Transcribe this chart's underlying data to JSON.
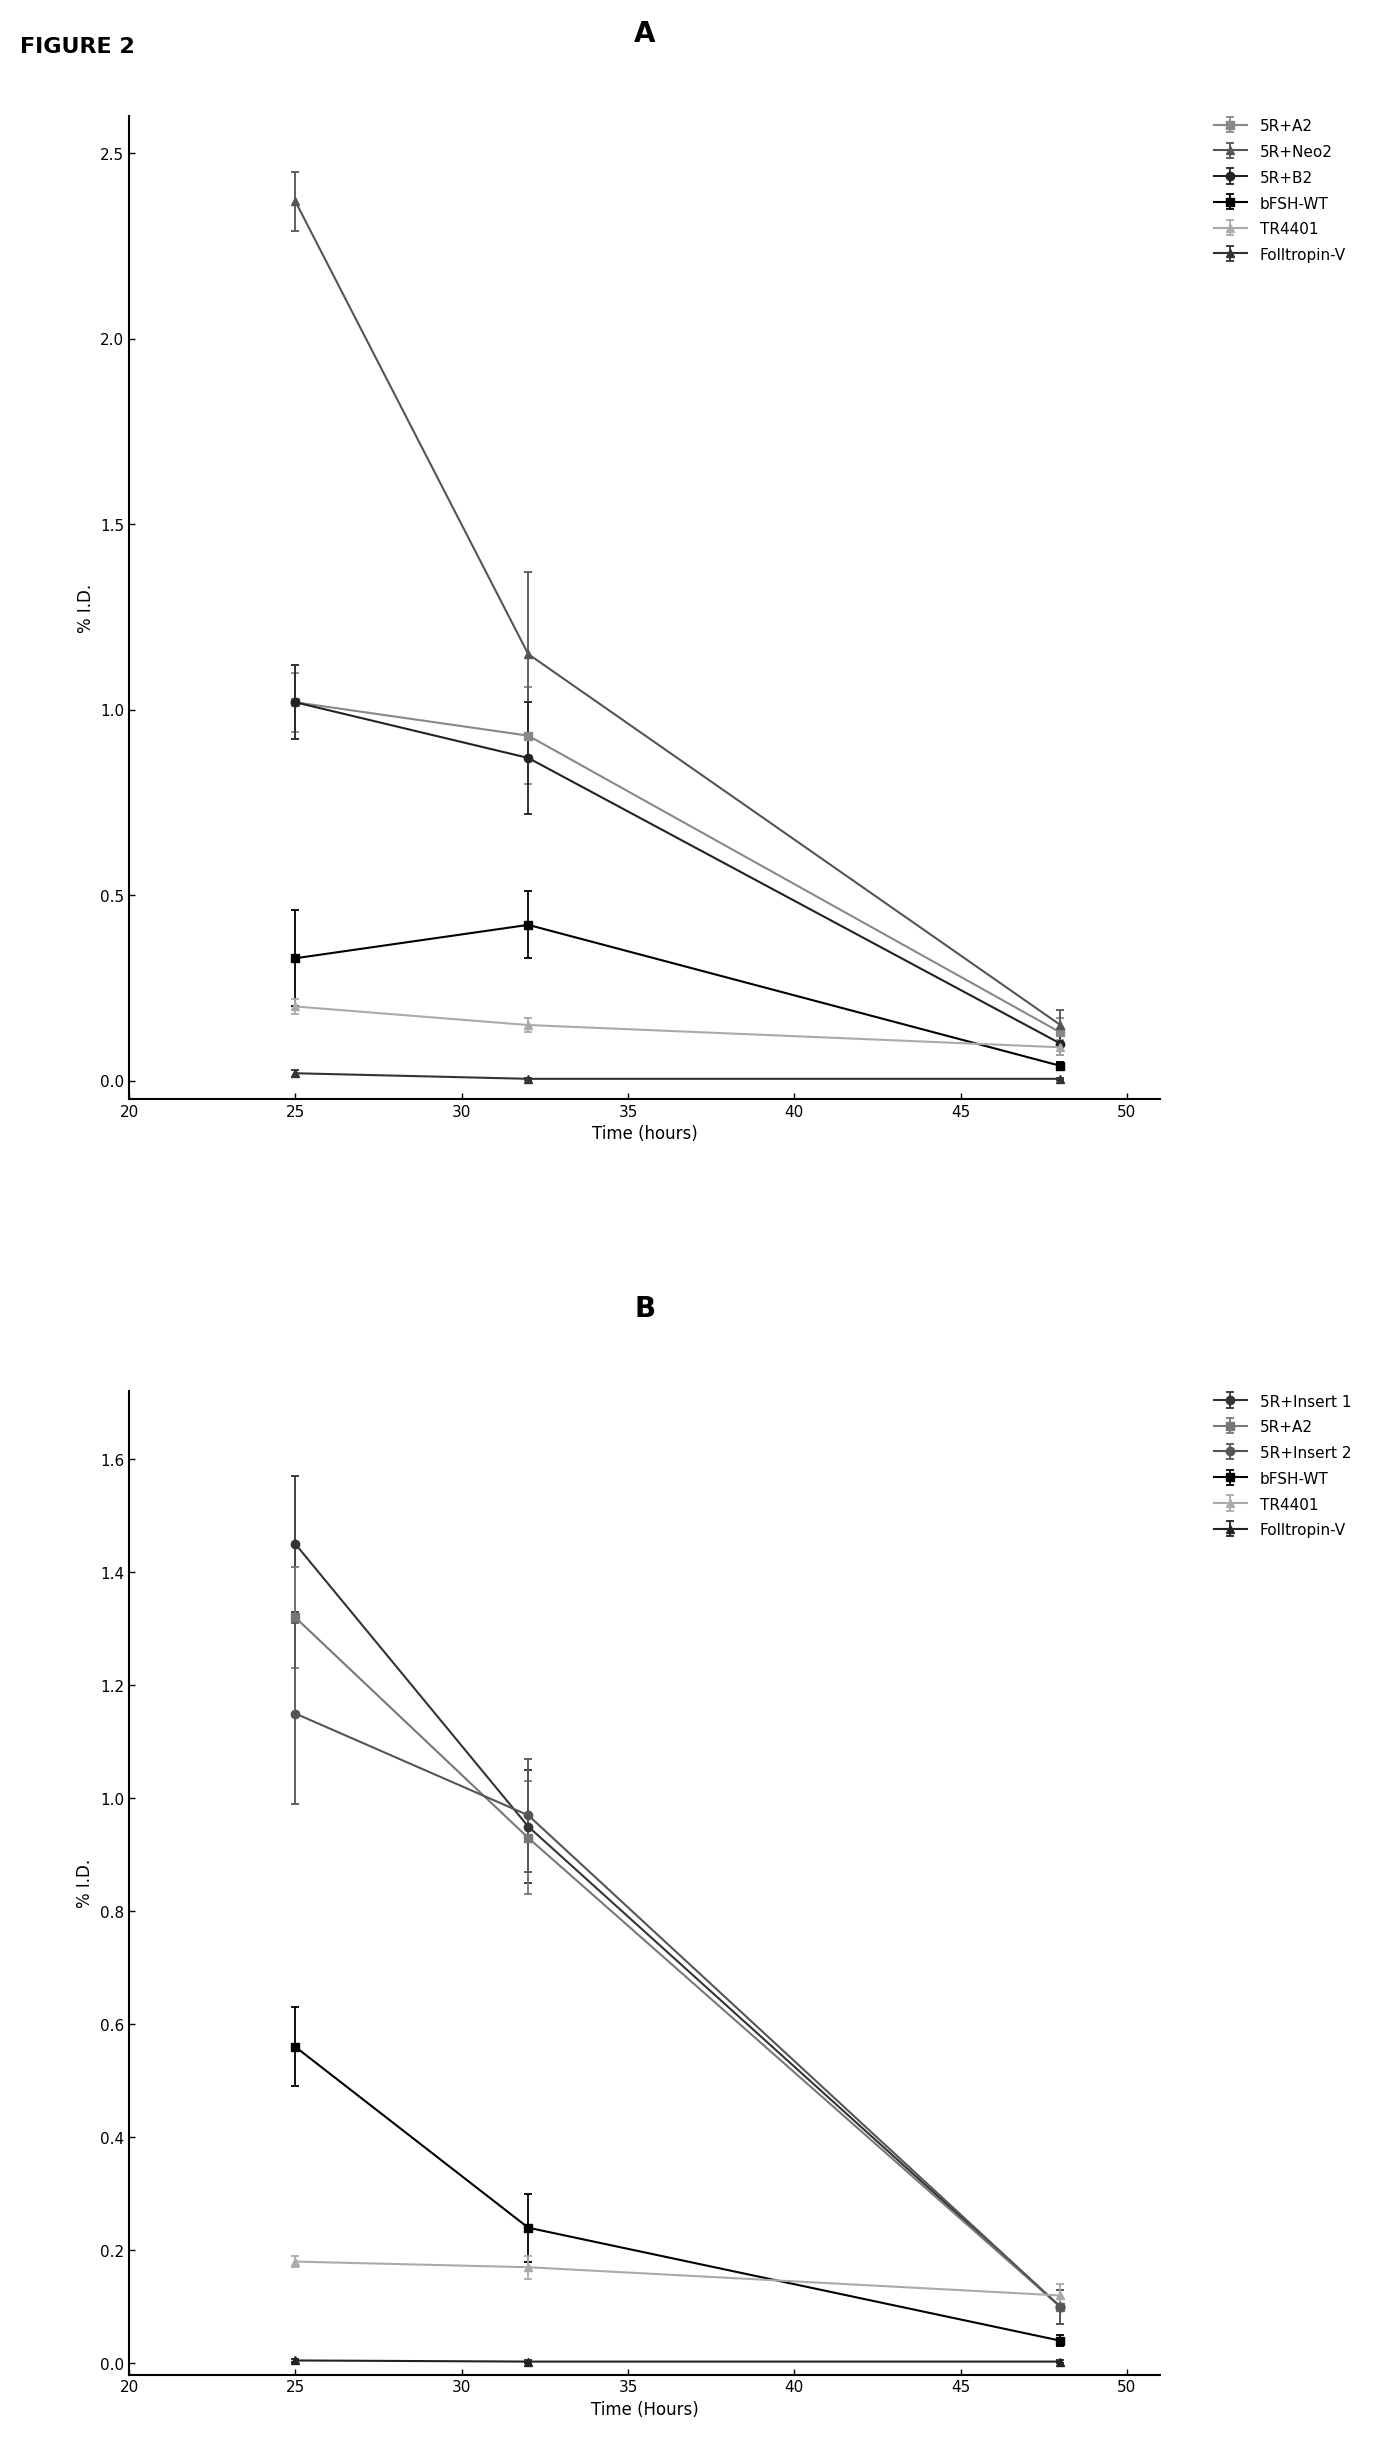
{
  "figure_label": "FIGURE 2",
  "background_color": "#ffffff",
  "figure_label_fontsize": 16,
  "panel_label_fontsize": 20,
  "axis_label_fontsize": 12,
  "tick_fontsize": 11,
  "legend_fontsize": 11,
  "panel_A": {
    "title": "A",
    "xlabel": "Time (hours)",
    "ylabel": "% I.D.",
    "xlim": [
      20,
      51
    ],
    "ylim": [
      -0.05,
      2.6
    ],
    "xticks": [
      20,
      25,
      30,
      35,
      40,
      45,
      50
    ],
    "yticks": [
      0.0,
      0.5,
      1.0,
      1.5,
      2.0,
      2.5
    ],
    "series": [
      {
        "label": "5R+A2",
        "color": "#888888",
        "marker": "s",
        "x": [
          25,
          32,
          48
        ],
        "y": [
          1.02,
          0.93,
          0.13
        ],
        "yerr": [
          0.08,
          0.13,
          0.04
        ]
      },
      {
        "label": "5R+Neo2",
        "color": "#555555",
        "marker": "^",
        "x": [
          25,
          32,
          48
        ],
        "y": [
          2.37,
          1.15,
          0.15
        ],
        "yerr": [
          0.08,
          0.22,
          0.04
        ]
      },
      {
        "label": "5R+B2",
        "color": "#222222",
        "marker": "o",
        "x": [
          25,
          32,
          48
        ],
        "y": [
          1.02,
          0.87,
          0.1
        ],
        "yerr": [
          0.1,
          0.15,
          0.03
        ]
      },
      {
        "label": "bFSH-WT",
        "color": "#000000",
        "marker": "s",
        "x": [
          25,
          32,
          48
        ],
        "y": [
          0.33,
          0.42,
          0.04
        ],
        "yerr": [
          0.13,
          0.09,
          0.01
        ]
      },
      {
        "label": "TR4401",
        "color": "#aaaaaa",
        "marker": "^",
        "x": [
          25,
          32,
          48
        ],
        "y": [
          0.2,
          0.15,
          0.09
        ],
        "yerr": [
          0.02,
          0.02,
          0.02
        ]
      },
      {
        "label": "Folltropin-V",
        "color": "#333333",
        "marker": "^",
        "x": [
          25,
          32,
          48
        ],
        "y": [
          0.02,
          0.005,
          0.005
        ],
        "yerr": [
          0.01,
          0.003,
          0.003
        ]
      }
    ]
  },
  "panel_B": {
    "title": "B",
    "xlabel": "Time (Hours)",
    "ylabel": "% I.D.",
    "xlim": [
      20,
      51
    ],
    "ylim": [
      -0.02,
      1.72
    ],
    "xticks": [
      20,
      25,
      30,
      35,
      40,
      45,
      50
    ],
    "yticks": [
      0.0,
      0.2,
      0.4,
      0.6,
      0.8,
      1.0,
      1.2,
      1.4,
      1.6
    ],
    "series": [
      {
        "label": "5R+Insert 1",
        "color": "#333333",
        "marker": "o",
        "x": [
          25,
          32,
          48
        ],
        "y": [
          1.45,
          0.95,
          0.1
        ],
        "yerr": [
          0.12,
          0.1,
          0.03
        ]
      },
      {
        "label": "5R+A2",
        "color": "#777777",
        "marker": "s",
        "x": [
          25,
          32,
          48
        ],
        "y": [
          1.32,
          0.93,
          0.1
        ],
        "yerr": [
          0.09,
          0.1,
          0.03
        ]
      },
      {
        "label": "5R+Insert 2",
        "color": "#555555",
        "marker": "o",
        "x": [
          25,
          32,
          48
        ],
        "y": [
          1.15,
          0.97,
          0.1
        ],
        "yerr": [
          0.16,
          0.1,
          0.03
        ]
      },
      {
        "label": "bFSH-WT",
        "color": "#000000",
        "marker": "s",
        "x": [
          25,
          32,
          48
        ],
        "y": [
          0.56,
          0.24,
          0.04
        ],
        "yerr": [
          0.07,
          0.06,
          0.01
        ]
      },
      {
        "label": "TR4401",
        "color": "#aaaaaa",
        "marker": "^",
        "x": [
          25,
          32,
          48
        ],
        "y": [
          0.18,
          0.17,
          0.12
        ],
        "yerr": [
          0.01,
          0.02,
          0.02
        ]
      },
      {
        "label": "Folltropin-V",
        "color": "#222222",
        "marker": "^",
        "x": [
          25,
          32,
          48
        ],
        "y": [
          0.005,
          0.003,
          0.003
        ],
        "yerr": [
          0.003,
          0.002,
          0.002
        ]
      }
    ]
  }
}
